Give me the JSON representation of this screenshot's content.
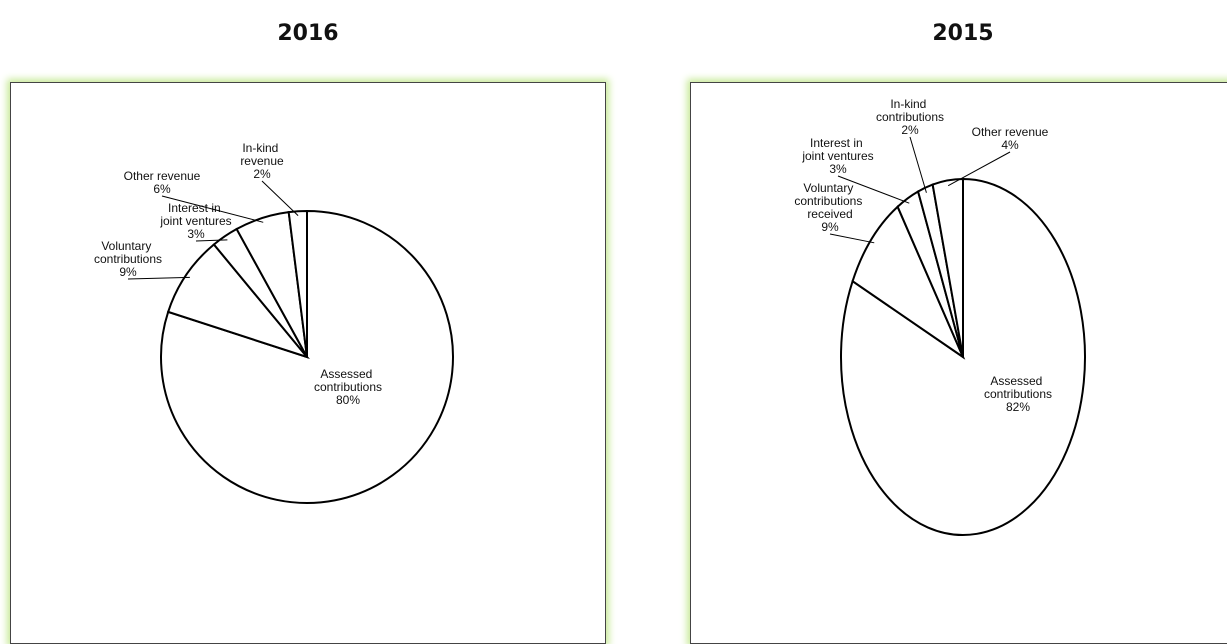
{
  "chart_data": [
    {
      "type": "pie",
      "title": "2016",
      "categories": [
        "Assessed contributions",
        "Voluntary contributions",
        "Interest in joint ventures",
        "Other revenue",
        "In-kind revenue"
      ],
      "values": [
        80,
        9,
        3,
        6,
        2
      ],
      "value_labels": [
        "80%",
        "9%",
        "3%",
        "6%",
        "2%"
      ],
      "color": "#ffffff"
    },
    {
      "type": "pie",
      "title": "2015",
      "categories": [
        "Assessed contributions",
        "Voluntary contributions received",
        "Interest in joint ventures",
        "In-kind contributions",
        "Other revenue"
      ],
      "values": [
        82,
        9,
        3,
        2,
        4
      ],
      "value_labels": [
        "82%",
        "9%",
        "3%",
        "2%",
        "4%"
      ],
      "color": "#ffffff"
    }
  ]
}
